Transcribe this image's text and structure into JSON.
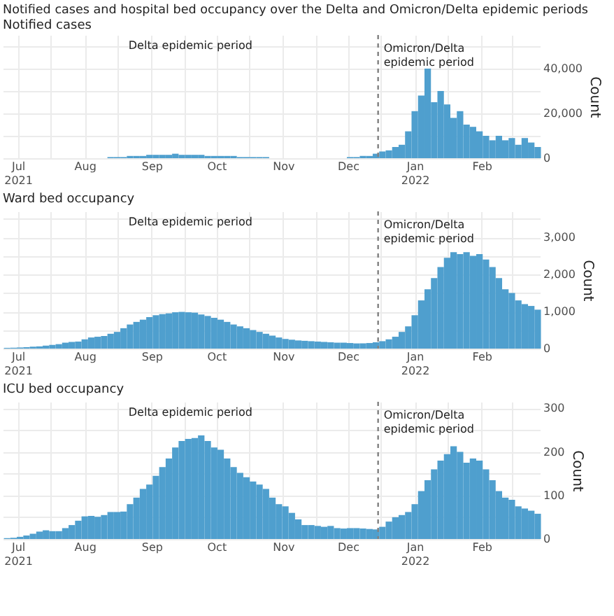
{
  "chart_data": [
    {
      "type": "bar",
      "title": "Notified cases and hospital bed occupancy over the Delta and Omicron/Delta epidemic periods",
      "subtitle": "Notified cases",
      "ylabel": "Count",
      "color": "#4f9fce",
      "grid": true,
      "x": [
        "2021-06-26",
        "2021-06-29",
        "2021-07-02",
        "2021-07-05",
        "2021-07-08",
        "2021-07-11",
        "2021-07-14",
        "2021-07-17",
        "2021-07-20",
        "2021-07-23",
        "2021-07-26",
        "2021-07-29",
        "2021-08-01",
        "2021-08-04",
        "2021-08-07",
        "2021-08-10",
        "2021-08-13",
        "2021-08-16",
        "2021-08-19",
        "2021-08-22",
        "2021-08-25",
        "2021-08-28",
        "2021-08-31",
        "2021-09-03",
        "2021-09-06",
        "2021-09-09",
        "2021-09-12",
        "2021-09-15",
        "2021-09-18",
        "2021-09-21",
        "2021-09-24",
        "2021-09-27",
        "2021-09-30",
        "2021-10-03",
        "2021-10-06",
        "2021-10-09",
        "2021-10-12",
        "2021-10-15",
        "2021-10-18",
        "2021-10-21",
        "2021-10-24",
        "2021-10-27",
        "2021-10-30",
        "2021-11-02",
        "2021-11-05",
        "2021-11-08",
        "2021-11-11",
        "2021-11-14",
        "2021-11-17",
        "2021-11-20",
        "2021-11-23",
        "2021-11-26",
        "2021-11-29",
        "2021-12-02",
        "2021-12-05",
        "2021-12-08",
        "2021-12-11",
        "2021-12-14",
        "2021-12-17",
        "2021-12-20",
        "2021-12-23",
        "2021-12-26",
        "2021-12-29",
        "2022-01-01",
        "2022-01-04",
        "2022-01-07",
        "2022-01-10",
        "2022-01-13",
        "2022-01-16",
        "2022-01-19",
        "2022-01-22",
        "2022-01-25",
        "2022-01-28",
        "2022-01-31",
        "2022-02-03",
        "2022-02-06",
        "2022-02-09",
        "2022-02-12",
        "2022-02-15",
        "2022-02-18",
        "2022-02-21",
        "2022-02-24",
        "2022-02-27"
      ],
      "values": [
        0,
        0,
        0,
        0,
        0,
        0,
        0,
        0,
        0,
        0,
        0,
        0,
        0,
        0,
        0,
        0,
        500,
        500,
        500,
        1000,
        1000,
        1000,
        1500,
        1500,
        1500,
        1500,
        2000,
        1500,
        1500,
        1500,
        1500,
        1000,
        1000,
        1000,
        1000,
        1000,
        500,
        500,
        500,
        500,
        500,
        0,
        0,
        0,
        0,
        0,
        0,
        0,
        0,
        0,
        0,
        0,
        0,
        500,
        500,
        1000,
        1000,
        2000,
        3000,
        3500,
        5000,
        6000,
        12000,
        21000,
        28000,
        40000,
        25000,
        30000,
        24000,
        18000,
        21000,
        15000,
        14000,
        12000,
        10000,
        8000,
        10000,
        8000,
        9000,
        6000,
        9000,
        7000,
        5000
      ],
      "xlim": [
        "2021-06-24",
        "2022-02-28"
      ],
      "xticks": [
        {
          "value": "2021-07-01",
          "label": "Jul\n2021"
        },
        {
          "value": "2021-07-16",
          "label": null
        },
        {
          "value": "2021-08-01",
          "label": "Aug"
        },
        {
          "value": "2021-08-16",
          "label": null
        },
        {
          "value": "2021-09-01",
          "label": "Sep"
        },
        {
          "value": "2021-09-16",
          "label": null
        },
        {
          "value": "2021-10-01",
          "label": "Oct"
        },
        {
          "value": "2021-10-16",
          "label": null
        },
        {
          "value": "2021-11-01",
          "label": "Nov"
        },
        {
          "value": "2021-11-16",
          "label": null
        },
        {
          "value": "2021-12-01",
          "label": "Dec"
        },
        {
          "value": "2021-12-16",
          "label": null
        },
        {
          "value": "2022-01-01",
          "label": "Jan\n2022"
        },
        {
          "value": "2022-01-16",
          "label": null
        },
        {
          "value": "2022-02-01",
          "label": "Feb"
        },
        {
          "value": "2022-02-15",
          "label": null
        }
      ],
      "ylim": [
        0,
        55000
      ],
      "yticks": [
        0,
        {
          "value": 10000,
          "label": null
        },
        {
          "value": 20000,
          "label": "20,000"
        },
        {
          "value": 30000,
          "label": null
        },
        {
          "value": 40000,
          "label": "40,000"
        },
        {
          "value": 50000,
          "label": null
        }
      ],
      "ref_lines": [
        {
          "axis": "x",
          "value": "2021-12-15",
          "line_style": "dashed",
          "color": "#808080"
        }
      ],
      "annotations": [
        "Delta epidemic period",
        "Omicron/Delta\nepidemic period"
      ]
    },
    {
      "type": "bar",
      "title": "Ward bed occupancy",
      "ylabel": "Count",
      "color": "#4f9fce",
      "grid": true,
      "x": [
        "2021-06-26",
        "2021-06-29",
        "2021-07-02",
        "2021-07-05",
        "2021-07-08",
        "2021-07-11",
        "2021-07-14",
        "2021-07-17",
        "2021-07-20",
        "2021-07-23",
        "2021-07-26",
        "2021-07-29",
        "2021-08-01",
        "2021-08-04",
        "2021-08-07",
        "2021-08-10",
        "2021-08-13",
        "2021-08-16",
        "2021-08-19",
        "2021-08-22",
        "2021-08-25",
        "2021-08-28",
        "2021-08-31",
        "2021-09-03",
        "2021-09-06",
        "2021-09-09",
        "2021-09-12",
        "2021-09-15",
        "2021-09-18",
        "2021-09-21",
        "2021-09-24",
        "2021-09-27",
        "2021-09-30",
        "2021-10-03",
        "2021-10-06",
        "2021-10-09",
        "2021-10-12",
        "2021-10-15",
        "2021-10-18",
        "2021-10-21",
        "2021-10-24",
        "2021-10-27",
        "2021-10-30",
        "2021-11-02",
        "2021-11-05",
        "2021-11-08",
        "2021-11-11",
        "2021-11-14",
        "2021-11-17",
        "2021-11-20",
        "2021-11-23",
        "2021-11-26",
        "2021-11-29",
        "2021-12-02",
        "2021-12-05",
        "2021-12-08",
        "2021-12-11",
        "2021-12-14",
        "2021-12-17",
        "2021-12-20",
        "2021-12-23",
        "2021-12-26",
        "2021-12-29",
        "2022-01-01",
        "2022-01-04",
        "2022-01-07",
        "2022-01-10",
        "2022-01-13",
        "2022-01-16",
        "2022-01-19",
        "2022-01-22",
        "2022-01-25",
        "2022-01-28",
        "2022-01-31",
        "2022-02-03",
        "2022-02-06",
        "2022-02-09",
        "2022-02-12",
        "2022-02-15",
        "2022-02-18",
        "2022-02-21",
        "2022-02-24",
        "2022-02-27"
      ],
      "values": [
        20,
        25,
        30,
        40,
        50,
        60,
        80,
        100,
        120,
        160,
        180,
        190,
        250,
        300,
        320,
        340,
        400,
        450,
        550,
        650,
        720,
        780,
        850,
        900,
        930,
        950,
        980,
        990,
        980,
        970,
        920,
        880,
        830,
        780,
        720,
        650,
        600,
        550,
        500,
        450,
        400,
        350,
        300,
        260,
        240,
        220,
        210,
        200,
        190,
        180,
        170,
        160,
        160,
        150,
        140,
        140,
        150,
        170,
        200,
        250,
        320,
        450,
        600,
        900,
        1300,
        1600,
        1900,
        2200,
        2450,
        2600,
        2550,
        2600,
        2500,
        2550,
        2400,
        2200,
        1900,
        1600,
        1500,
        1300,
        1200,
        1150,
        1050
      ],
      "xlim": [
        "2021-06-24",
        "2022-02-28"
      ],
      "xticks": [
        {
          "value": "2021-07-01",
          "label": "Jul\n2021"
        },
        {
          "value": "2021-07-16",
          "label": null
        },
        {
          "value": "2021-08-01",
          "label": "Aug"
        },
        {
          "value": "2021-08-16",
          "label": null
        },
        {
          "value": "2021-09-01",
          "label": "Sep"
        },
        {
          "value": "2021-09-16",
          "label": null
        },
        {
          "value": "2021-10-01",
          "label": "Oct"
        },
        {
          "value": "2021-10-16",
          "label": null
        },
        {
          "value": "2021-11-01",
          "label": "Nov"
        },
        {
          "value": "2021-11-16",
          "label": null
        },
        {
          "value": "2021-12-01",
          "label": "Dec"
        },
        {
          "value": "2021-12-16",
          "label": null
        },
        {
          "value": "2022-01-01",
          "label": "Jan\n2022"
        },
        {
          "value": "2022-01-16",
          "label": null
        },
        {
          "value": "2022-02-01",
          "label": "Feb"
        },
        {
          "value": "2022-02-15",
          "label": null
        }
      ],
      "ylim": [
        0,
        3700
      ],
      "yticks": [
        0,
        {
          "value": 500,
          "label": null
        },
        {
          "value": 1000,
          "label": "1,000"
        },
        {
          "value": 1500,
          "label": null
        },
        {
          "value": 2000,
          "label": "2,000"
        },
        {
          "value": 2500,
          "label": null
        },
        {
          "value": 3000,
          "label": "3,000"
        },
        {
          "value": 3500,
          "label": null
        }
      ],
      "ref_lines": [
        {
          "axis": "x",
          "value": "2021-12-15",
          "line_style": "dashed",
          "color": "#808080"
        }
      ],
      "annotations": [
        "Delta epidemic period",
        "Omicron/Delta\nepidemic period"
      ]
    },
    {
      "type": "bar",
      "title": "ICU bed occupancy",
      "ylabel": "Count",
      "color": "#4f9fce",
      "grid": true,
      "x": [
        "2021-06-26",
        "2021-06-29",
        "2021-07-02",
        "2021-07-05",
        "2021-07-08",
        "2021-07-11",
        "2021-07-14",
        "2021-07-17",
        "2021-07-20",
        "2021-07-23",
        "2021-07-26",
        "2021-07-29",
        "2021-08-01",
        "2021-08-04",
        "2021-08-07",
        "2021-08-10",
        "2021-08-13",
        "2021-08-16",
        "2021-08-19",
        "2021-08-22",
        "2021-08-25",
        "2021-08-28",
        "2021-08-31",
        "2021-09-03",
        "2021-09-06",
        "2021-09-09",
        "2021-09-12",
        "2021-09-15",
        "2021-09-18",
        "2021-09-21",
        "2021-09-24",
        "2021-09-27",
        "2021-09-30",
        "2021-10-03",
        "2021-10-06",
        "2021-10-09",
        "2021-10-12",
        "2021-10-15",
        "2021-10-18",
        "2021-10-21",
        "2021-10-24",
        "2021-10-27",
        "2021-10-30",
        "2021-11-02",
        "2021-11-05",
        "2021-11-08",
        "2021-11-11",
        "2021-11-14",
        "2021-11-17",
        "2021-11-20",
        "2021-11-23",
        "2021-11-26",
        "2021-11-29",
        "2021-12-02",
        "2021-12-05",
        "2021-12-08",
        "2021-12-11",
        "2021-12-14",
        "2021-12-17",
        "2021-12-20",
        "2021-12-23",
        "2021-12-26",
        "2021-12-29",
        "2022-01-01",
        "2022-01-04",
        "2022-01-07",
        "2022-01-10",
        "2022-01-13",
        "2022-01-16",
        "2022-01-19",
        "2022-01-22",
        "2022-01-25",
        "2022-01-28",
        "2022-01-31",
        "2022-02-03",
        "2022-02-06",
        "2022-02-09",
        "2022-02-12",
        "2022-02-15",
        "2022-02-18",
        "2022-02-21",
        "2022-02-24",
        "2022-02-27"
      ],
      "values": [
        2,
        3,
        5,
        8,
        12,
        17,
        20,
        18,
        18,
        25,
        32,
        42,
        52,
        53,
        51,
        55,
        62,
        62,
        63,
        80,
        95,
        115,
        125,
        145,
        165,
        185,
        210,
        225,
        230,
        232,
        238,
        225,
        210,
        205,
        185,
        165,
        152,
        142,
        132,
        125,
        115,
        95,
        80,
        75,
        60,
        45,
        32,
        32,
        30,
        28,
        30,
        25,
        24,
        25,
        25,
        24,
        23,
        22,
        28,
        40,
        50,
        55,
        62,
        80,
        110,
        135,
        160,
        180,
        195,
        213,
        200,
        175,
        185,
        180,
        160,
        135,
        110,
        95,
        90,
        75,
        70,
        65,
        58
      ],
      "xlim": [
        "2021-06-24",
        "2022-02-28"
      ],
      "xticks": [
        {
          "value": "2021-07-01",
          "label": "Jul\n2021"
        },
        {
          "value": "2021-07-16",
          "label": null
        },
        {
          "value": "2021-08-01",
          "label": "Aug"
        },
        {
          "value": "2021-08-16",
          "label": null
        },
        {
          "value": "2021-09-01",
          "label": "Sep"
        },
        {
          "value": "2021-09-16",
          "label": null
        },
        {
          "value": "2021-10-01",
          "label": "Oct"
        },
        {
          "value": "2021-10-16",
          "label": null
        },
        {
          "value": "2021-11-01",
          "label": "Nov"
        },
        {
          "value": "2021-11-16",
          "label": null
        },
        {
          "value": "2021-12-01",
          "label": "Dec"
        },
        {
          "value": "2021-12-16",
          "label": null
        },
        {
          "value": "2022-01-01",
          "label": "Jan\n2022"
        },
        {
          "value": "2022-01-16",
          "label": null
        },
        {
          "value": "2022-02-01",
          "label": "Feb"
        },
        {
          "value": "2022-02-15",
          "label": null
        }
      ],
      "ylim": [
        0,
        315
      ],
      "yticks": [
        0,
        {
          "value": 50,
          "label": null
        },
        100,
        {
          "value": 150,
          "label": null
        },
        200,
        {
          "value": 250,
          "label": null
        },
        300
      ],
      "ref_lines": [
        {
          "axis": "x",
          "value": "2021-12-15",
          "line_style": "dashed",
          "color": "#808080"
        }
      ],
      "annotations": [
        "Delta epidemic period",
        "Omicron/Delta\nepidemic period"
      ]
    }
  ]
}
